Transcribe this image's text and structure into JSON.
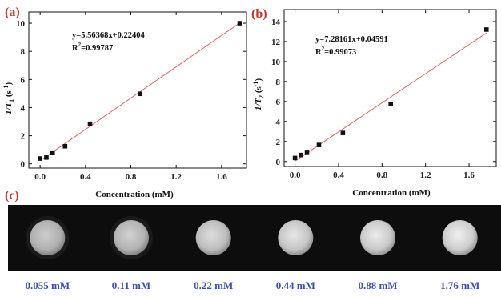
{
  "chart_data": [
    {
      "panel": "(a)",
      "type": "scatter",
      "xlabel": "Concentration (mM)",
      "ylabel_base": "1/T",
      "ylabel_sub": "1",
      "ylabel_unit": " (s",
      "ylabel_sup": "-1",
      "ylabel_close": ")",
      "xlim": [
        -0.1,
        1.82
      ],
      "ylim": [
        -0.3,
        10.8
      ],
      "xticks": [
        0.0,
        0.4,
        0.8,
        1.2,
        1.6
      ],
      "xtick_labels": [
        "0.0",
        "0.4",
        "0.8",
        "1.2",
        "1.6"
      ],
      "yticks": [
        0,
        2,
        4,
        6,
        8,
        10
      ],
      "ytick_labels": [
        "0",
        "2",
        "4",
        "6",
        "8",
        "10"
      ],
      "points": [
        {
          "x": 0.0,
          "y": 0.38
        },
        {
          "x": 0.055,
          "y": 0.45
        },
        {
          "x": 0.11,
          "y": 0.8
        },
        {
          "x": 0.22,
          "y": 1.25
        },
        {
          "x": 0.44,
          "y": 2.85
        },
        {
          "x": 0.88,
          "y": 4.98
        },
        {
          "x": 1.76,
          "y": 10.0
        }
      ],
      "fit": {
        "slope": 5.56368,
        "intercept": 0.22404,
        "x_range": [
          0.0,
          1.76
        ]
      },
      "equation": "y=5.56368x+0.22404",
      "r2_prefix": "R",
      "r2_sup": "2",
      "r2_value": "=0.99787"
    },
    {
      "panel": "(b)",
      "type": "scatter",
      "xlabel": "Concentration (mM)",
      "ylabel_base": "1/T",
      "ylabel_sub": "2",
      "ylabel_unit": " (s",
      "ylabel_sup": "-1",
      "ylabel_close": ")",
      "xlim": [
        -0.1,
        1.85
      ],
      "ylim": [
        -0.5,
        15.2
      ],
      "xticks": [
        0.0,
        0.4,
        0.8,
        1.2,
        1.6
      ],
      "xtick_labels": [
        "0.0",
        "0.4",
        "0.8",
        "1.2",
        "1.6"
      ],
      "yticks": [
        0,
        2,
        4,
        6,
        8,
        10,
        12,
        14
      ],
      "ytick_labels": [
        "0",
        "2",
        "4",
        "6",
        "8",
        "10",
        "12",
        "14"
      ],
      "points": [
        {
          "x": 0.0,
          "y": 0.35
        },
        {
          "x": 0.055,
          "y": 0.65
        },
        {
          "x": 0.11,
          "y": 0.95
        },
        {
          "x": 0.22,
          "y": 1.65
        },
        {
          "x": 0.44,
          "y": 2.85
        },
        {
          "x": 0.88,
          "y": 5.75
        },
        {
          "x": 1.76,
          "y": 13.2
        }
      ],
      "fit": {
        "slope": 7.28161,
        "intercept": 0.04591,
        "x_range": [
          0.0,
          1.76
        ]
      },
      "equation": "y=7.28161x+0.04591",
      "r2_prefix": "R",
      "r2_sup": "2",
      "r2_value": "=0.99073"
    }
  ],
  "panel_c": {
    "panel": "(c)",
    "samples": [
      {
        "label": "0.055 mM",
        "intensity": 0.78
      },
      {
        "label": "0.11 mM",
        "intensity": 0.8
      },
      {
        "label": "0.22 mM",
        "intensity": 0.86
      },
      {
        "label": "0.44 mM",
        "intensity": 0.9
      },
      {
        "label": "0.88 mM",
        "intensity": 0.92
      },
      {
        "label": "1.76  mM",
        "intensity": 0.94
      }
    ]
  },
  "colors": {
    "marker": "#111111",
    "fit_line": "#e06666",
    "panel_label": "#c0392b",
    "conc_label": "#3b4fb0",
    "mri_background": "#0d0d0d"
  }
}
